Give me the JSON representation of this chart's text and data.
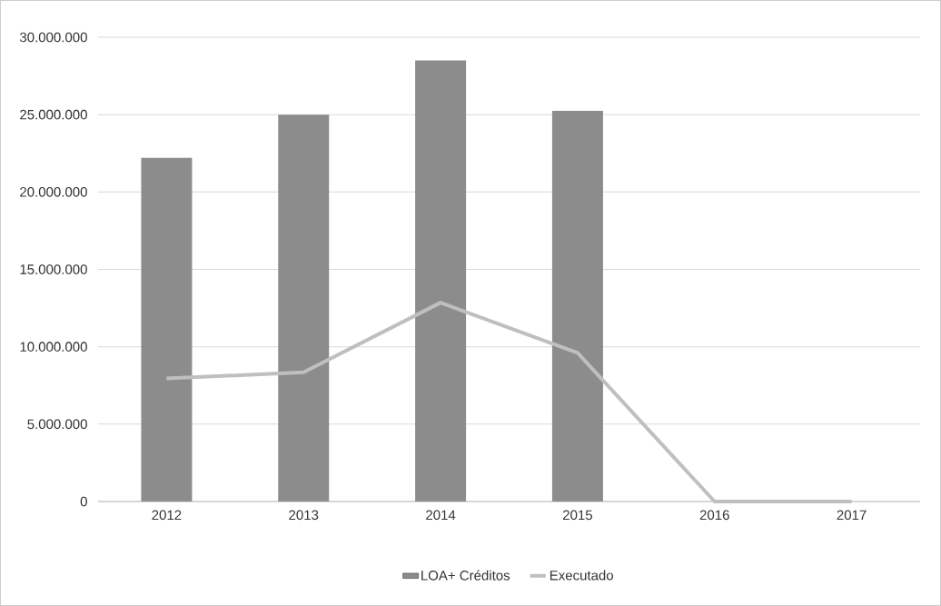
{
  "chart_data": {
    "type": "bar",
    "categories": [
      "2012",
      "2013",
      "2014",
      "2015",
      "2016",
      "2017"
    ],
    "series": [
      {
        "name": "LOA+ Créditos",
        "color": "#8c8c8c",
        "values": [
          22200000,
          25000000,
          28500000,
          25250000,
          0,
          0
        ]
      },
      {
        "name": "Executado",
        "type": "line",
        "color": "#bfbfbf",
        "values": [
          7950000,
          8350000,
          12850000,
          9600000,
          0,
          0
        ]
      }
    ],
    "ylim": [
      0,
      30000000
    ],
    "yticks": [
      0,
      {
        "value": 5000000,
        "label": "5.000.000"
      },
      {
        "value": 10000000,
        "label": "10.000.000"
      },
      {
        "value": 15000000,
        "label": "15.000.000"
      },
      {
        "value": 20000000,
        "label": "20.000.000"
      },
      {
        "value": 25000000,
        "label": "25.000.000"
      },
      {
        "value": 30000000,
        "label": "30.000.000"
      }
    ],
    "grid": "y",
    "legend": "bottom",
    "marker": "none",
    "line_style": "solid"
  }
}
